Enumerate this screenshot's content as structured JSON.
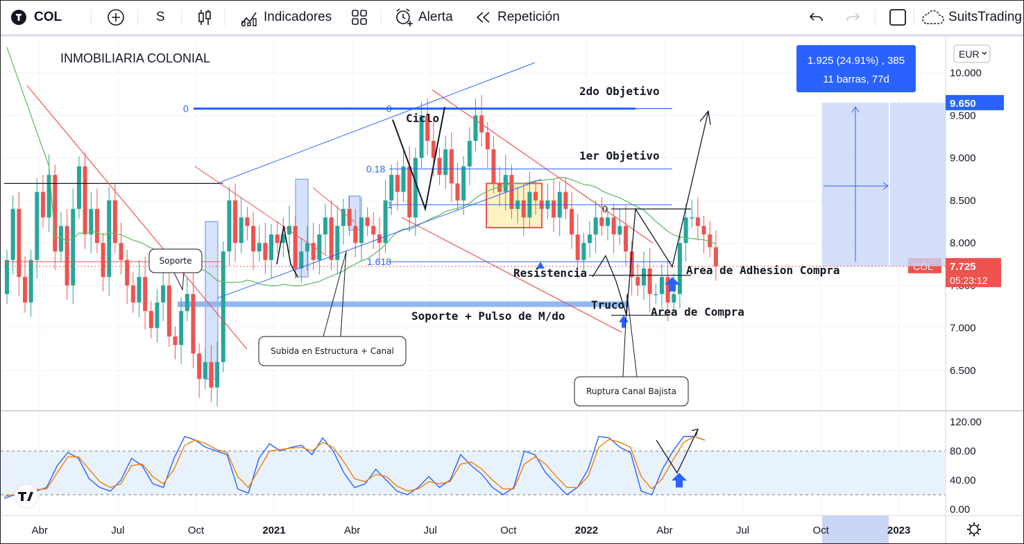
{
  "toolbar": {
    "symbol": "COL",
    "interval": "S",
    "indicators": "Indicadores",
    "alert": "Alerta",
    "replay": "Repetición",
    "brand": "SuitsTrading"
  },
  "colors": {
    "up": "#26a69a",
    "down": "#ef5350",
    "ma": "#66bb6a",
    "fib_blue": "#2962ff",
    "channel_red": "#ef5350",
    "stoch_k": "#2962ff",
    "stoch_d": "#f57c00"
  },
  "chart_data": [
    {
      "type": "candlestick",
      "title": "INMOBILIARIA COLONIAL",
      "currency": "EUR",
      "y_ticks": [
        6.5,
        7.0,
        7.5,
        8.0,
        8.5,
        9.0,
        9.5,
        10.0
      ],
      "y_tick_labels": [
        "6.500",
        "7.000",
        "7.500",
        "8.000",
        "8.500",
        "9.000",
        "9.500",
        "10.000"
      ],
      "ylim": [
        6.05,
        10.4
      ],
      "x_tick_labels": [
        {
          "label": "Abr",
          "bar": 2,
          "bold": false
        },
        {
          "label": "Jul",
          "bar": 15,
          "bold": false
        },
        {
          "label": "Oct",
          "bar": 28,
          "bold": false
        },
        {
          "label": "2021",
          "bar": 41,
          "bold": true
        },
        {
          "label": "Abr",
          "bar": 54,
          "bold": false
        },
        {
          "label": "Jul",
          "bar": 67,
          "bold": false
        },
        {
          "label": "Oct",
          "bar": 80,
          "bold": false
        },
        {
          "label": "2022",
          "bar": 93,
          "bold": true
        },
        {
          "label": "Abr",
          "bar": 106,
          "bold": false
        },
        {
          "label": "Jul",
          "bar": 119,
          "bold": false
        },
        {
          "label": "Oct",
          "bar": 132,
          "bold": false
        },
        {
          "label": "2023",
          "bar": 145,
          "bold": true
        }
      ],
      "price_label": {
        "symbol": "COL",
        "value": "7.725",
        "countdown": "05:23:12"
      },
      "target_price_label": "9.650",
      "measure_box": {
        "line1": "1.925 (24.91%) , 385",
        "line2": "11 barras, 77d",
        "from": 7.725,
        "to": 9.65
      },
      "candles_close": [
        7.8,
        8.4,
        7.6,
        7.3,
        7.8,
        8.6,
        8.3,
        8.8,
        7.9,
        8.2,
        7.5,
        8.4,
        8.9,
        8.1,
        8.4,
        8.0,
        7.6,
        8.5,
        8.0,
        7.8,
        7.5,
        7.3,
        7.6,
        7.2,
        7.0,
        7.3,
        7.5,
        6.9,
        6.8,
        7.2,
        7.4,
        6.7,
        6.4,
        6.6,
        6.3,
        6.6,
        7.9,
        8.5,
        8.0,
        8.3,
        8.2,
        7.9,
        8.0,
        7.8,
        8.1,
        8.0,
        8.1,
        8.2,
        7.7,
        7.9,
        8.0,
        7.8,
        8.1,
        8.3,
        7.8,
        8.2,
        8.4,
        8.2,
        8.0,
        8.3,
        8.2,
        8.1,
        8.0,
        8.5,
        8.8,
        8.6,
        8.9,
        8.3,
        9.0,
        9.5,
        9.2,
        9.0,
        8.8,
        9.1,
        8.7,
        8.5,
        8.9,
        9.2,
        9.5,
        9.3,
        9.1,
        8.7,
        8.6,
        8.8,
        8.4,
        8.5,
        8.3,
        8.6,
        8.5,
        8.4,
        8.5,
        8.3,
        8.6,
        8.4,
        8.1,
        7.8,
        8.0,
        8.1,
        8.3,
        8.2,
        8.3,
        8.1,
        8.2,
        7.9,
        7.6,
        7.5,
        7.7,
        7.4,
        7.4,
        7.6,
        7.3,
        7.4,
        8.0,
        8.3,
        8.3,
        8.2,
        8.1,
        7.95,
        7.725
      ]
    },
    {
      "type": "line",
      "name": "stochastic",
      "y_ticks": [
        0,
        40,
        80,
        120
      ],
      "y_tick_labels": [
        "0.00",
        "40.00",
        "80.00",
        "120.00"
      ],
      "ylim": [
        0,
        130
      ],
      "bands": [
        20,
        80
      ],
      "series": [
        {
          "values": [
            15,
            20,
            28,
            25,
            30,
            60,
            78,
            70,
            42,
            30,
            25,
            40,
            70,
            60,
            35,
            30,
            70,
            100,
            95,
            85,
            80,
            75,
            28,
            22,
            70,
            90,
            80,
            85,
            88,
            75,
            98,
            80,
            50,
            30,
            35,
            55,
            40,
            25,
            20,
            30,
            45,
            30,
            40,
            75,
            60,
            48,
            30,
            20,
            30,
            80,
            75,
            50,
            35,
            20,
            30,
            55,
            100,
            98,
            85,
            78,
            25,
            20,
            55,
            80,
            100,
            100,
            95
          ]
        },
        {
          "values": [
            18,
            20,
            25,
            27,
            28,
            50,
            72,
            72,
            55,
            38,
            30,
            35,
            60,
            62,
            45,
            35,
            55,
            88,
            95,
            90,
            82,
            78,
            45,
            30,
            55,
            80,
            82,
            84,
            85,
            80,
            92,
            85,
            65,
            42,
            38,
            48,
            45,
            32,
            25,
            28,
            38,
            35,
            38,
            62,
            65,
            55,
            40,
            28,
            28,
            62,
            72,
            62,
            45,
            30,
            30,
            45,
            85,
            96,
            92,
            85,
            45,
            28,
            42,
            68,
            92,
            100,
            95
          ]
        }
      ]
    }
  ],
  "annotations": {
    "fib": {
      "top": "0",
      "f18": "0.18",
      "one": "1",
      "f1618": "1.618",
      "zero_right": "0"
    },
    "texts": {
      "obj2": "2do Objetivo",
      "obj1": "1er Objetivo",
      "ciclo": "Ciclo",
      "resistencia": "Resistencia",
      "soporte_pulso": "Soporte + Pulso de M/do",
      "area_adhesion": "Area de Adhesion Compra",
      "area_compra": "Area de Compra",
      "truco": "Truco"
    },
    "callouts": {
      "soporte": "Soporte",
      "subida": "Subida en Estructura + Canal",
      "ruptura": "Ruptura Canal Bajista"
    }
  }
}
